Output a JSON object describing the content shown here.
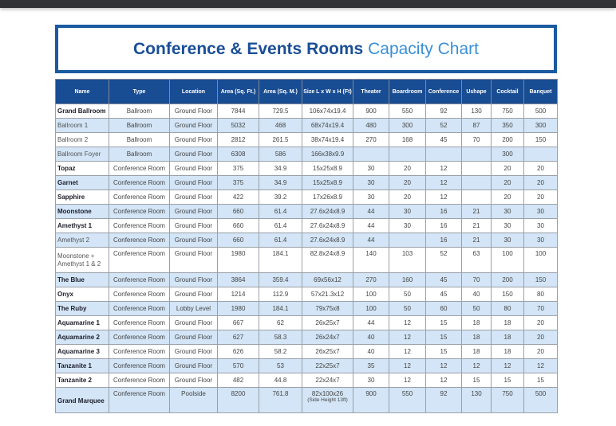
{
  "title": {
    "bold": "Conference & Events Rooms",
    "light": "Capacity Chart"
  },
  "colors": {
    "header_bg": "#184c93",
    "stripe": "#d3e5f6",
    "title_border": "#1a5aa0",
    "title_light": "#3a8fd6"
  },
  "columns": [
    "Name",
    "Type",
    "Location",
    "Area (Sq. Ft.)",
    "Area (Sq. M.)",
    "Size L x W x H (Ft)",
    "Theater",
    "Boardroom",
    "Conference",
    "Ushape",
    "Cocktail",
    "Banquet"
  ],
  "rows": [
    {
      "name": "Grand Ballroom",
      "bold": true,
      "type": "Ballroom",
      "location": "Ground Floor",
      "sqft": "7844",
      "sqm": "729.5",
      "size": "106x74x19.4",
      "theater": "900",
      "boardroom": "550",
      "conference": "92",
      "ushape": "130",
      "cocktail": "750",
      "banquet": "500"
    },
    {
      "name": "Ballroom 1",
      "bold": false,
      "type": "Ballroom",
      "location": "Ground Floor",
      "sqft": "5032",
      "sqm": "468",
      "size": "68x74x19.4",
      "theater": "480",
      "boardroom": "300",
      "conference": "52",
      "ushape": "87",
      "cocktail": "350",
      "banquet": "300"
    },
    {
      "name": "Ballroom 2",
      "bold": false,
      "type": "Ballroom",
      "location": "Ground Floor",
      "sqft": "2812",
      "sqm": "261.5",
      "size": "38x74x19.4",
      "theater": "270",
      "boardroom": "168",
      "conference": "45",
      "ushape": "70",
      "cocktail": "200",
      "banquet": "150"
    },
    {
      "name": "Ballroom Foyer",
      "bold": false,
      "type": "Ballroom",
      "location": "Ground Floor",
      "sqft": "6308",
      "sqm": "586",
      "size": "166x38x9.9",
      "theater": "",
      "boardroom": "",
      "conference": "",
      "ushape": "",
      "cocktail": "300",
      "banquet": ""
    },
    {
      "name": "Topaz",
      "bold": true,
      "type": "Conference Room",
      "location": "Ground Floor",
      "sqft": "375",
      "sqm": "34.9",
      "size": "15x25x8.9",
      "theater": "30",
      "boardroom": "20",
      "conference": "12",
      "ushape": "",
      "cocktail": "20",
      "banquet": "20"
    },
    {
      "name": "Garnet",
      "bold": true,
      "type": "Conference Room",
      "location": "Ground Floor",
      "sqft": "375",
      "sqm": "34.9",
      "size": "15x25x8.9",
      "theater": "30",
      "boardroom": "20",
      "conference": "12",
      "ushape": "",
      "cocktail": "20",
      "banquet": "20"
    },
    {
      "name": "Sapphire",
      "bold": true,
      "type": "Conference Room",
      "location": "Ground Floor",
      "sqft": "422",
      "sqm": "39.2",
      "size": "17x26x8.9",
      "theater": "30",
      "boardroom": "20",
      "conference": "12",
      "ushape": "",
      "cocktail": "20",
      "banquet": "20"
    },
    {
      "name": "Moonstone",
      "bold": true,
      "type": "Conference Room",
      "location": "Ground Floor",
      "sqft": "660",
      "sqm": "61.4",
      "size": "27.6x24x8.9",
      "theater": "44",
      "boardroom": "30",
      "conference": "16",
      "ushape": "21",
      "cocktail": "30",
      "banquet": "30"
    },
    {
      "name": "Amethyst 1",
      "bold": true,
      "type": "Conference Room",
      "location": "Ground Floor",
      "sqft": "660",
      "sqm": "61.4",
      "size": "27.6x24x8.9",
      "theater": "44",
      "boardroom": "30",
      "conference": "16",
      "ushape": "21",
      "cocktail": "30",
      "banquet": "30"
    },
    {
      "name": "Amethyst 2",
      "bold": false,
      "type": "Conference Room",
      "location": "Ground Floor",
      "sqft": "660",
      "sqm": "61.4",
      "size": "27.6x24x8.9",
      "theater": "44",
      "boardroom": "",
      "conference": "16",
      "ushape": "21",
      "cocktail": "30",
      "banquet": "30"
    },
    {
      "name": "Moonstone + Amethyst 1 & 2",
      "bold": false,
      "tall": true,
      "type": "Conference Room",
      "location": "Ground Floor",
      "sqft": "1980",
      "sqm": "184.1",
      "size": "82.8x24x8.9",
      "theater": "140",
      "boardroom": "103",
      "conference": "52",
      "ushape": "63",
      "cocktail": "100",
      "banquet": "100"
    },
    {
      "name": "The Blue",
      "bold": true,
      "type": "Conference Room",
      "location": "Ground Floor",
      "sqft": "3864",
      "sqm": "359.4",
      "size": "69x56x12",
      "theater": "270",
      "boardroom": "160",
      "conference": "45",
      "ushape": "70",
      "cocktail": "200",
      "banquet": "150"
    },
    {
      "name": "Onyx",
      "bold": true,
      "type": "Conference Room",
      "location": "Ground Floor",
      "sqft": "1214",
      "sqm": "112.9",
      "size": "57x21.3x12",
      "theater": "100",
      "boardroom": "50",
      "conference": "45",
      "ushape": "40",
      "cocktail": "150",
      "banquet": "80"
    },
    {
      "name": "The Ruby",
      "bold": true,
      "type": "Conference Room",
      "location": "Lobby Level",
      "sqft": "1980",
      "sqm": "184.1",
      "size": "79x75x8",
      "theater": "100",
      "boardroom": "50",
      "conference": "60",
      "ushape": "50",
      "cocktail": "80",
      "banquet": "70"
    },
    {
      "name": "Aquamarine 1",
      "bold": true,
      "type": "Conference Room",
      "location": "Ground Floor",
      "sqft": "667",
      "sqm": "62",
      "size": "26x25x7",
      "theater": "44",
      "boardroom": "12",
      "conference": "15",
      "ushape": "18",
      "cocktail": "18",
      "banquet": "20"
    },
    {
      "name": "Aquamarine 2",
      "bold": true,
      "type": "Conference Room",
      "location": "Ground Floor",
      "sqft": "627",
      "sqm": "58.3",
      "size": "26x24x7",
      "theater": "40",
      "boardroom": "12",
      "conference": "15",
      "ushape": "18",
      "cocktail": "18",
      "banquet": "20"
    },
    {
      "name": "Aquamarine 3",
      "bold": true,
      "type": "Conference Room",
      "location": "Ground Floor",
      "sqft": "626",
      "sqm": "58.2",
      "size": "26x25x7",
      "theater": "40",
      "boardroom": "12",
      "conference": "15",
      "ushape": "18",
      "cocktail": "18",
      "banquet": "20"
    },
    {
      "name": "Tanzanite 1",
      "bold": true,
      "type": "Conference Room",
      "location": "Ground Floor",
      "sqft": "570",
      "sqm": "53",
      "size": "22x25x7",
      "theater": "35",
      "boardroom": "12",
      "conference": "12",
      "ushape": "12",
      "cocktail": "12",
      "banquet": "12"
    },
    {
      "name": "Tanzanite 2",
      "bold": true,
      "type": "Conference Room",
      "location": "Ground Floor",
      "sqft": "482",
      "sqm": "44.8",
      "size": "22x24x7",
      "theater": "30",
      "boardroom": "12",
      "conference": "12",
      "ushape": "15",
      "cocktail": "15",
      "banquet": "15"
    },
    {
      "name": "Grand Marquee",
      "bold": true,
      "tall": true,
      "type": "Conference Room",
      "location": "Poolside",
      "sqft": "8200",
      "sqm": "761.8",
      "size": "82x100x26",
      "size_note": "(Side Height 13ft)",
      "theater": "900",
      "boardroom": "550",
      "conference": "92",
      "ushape": "130",
      "cocktail": "750",
      "banquet": "500"
    }
  ]
}
